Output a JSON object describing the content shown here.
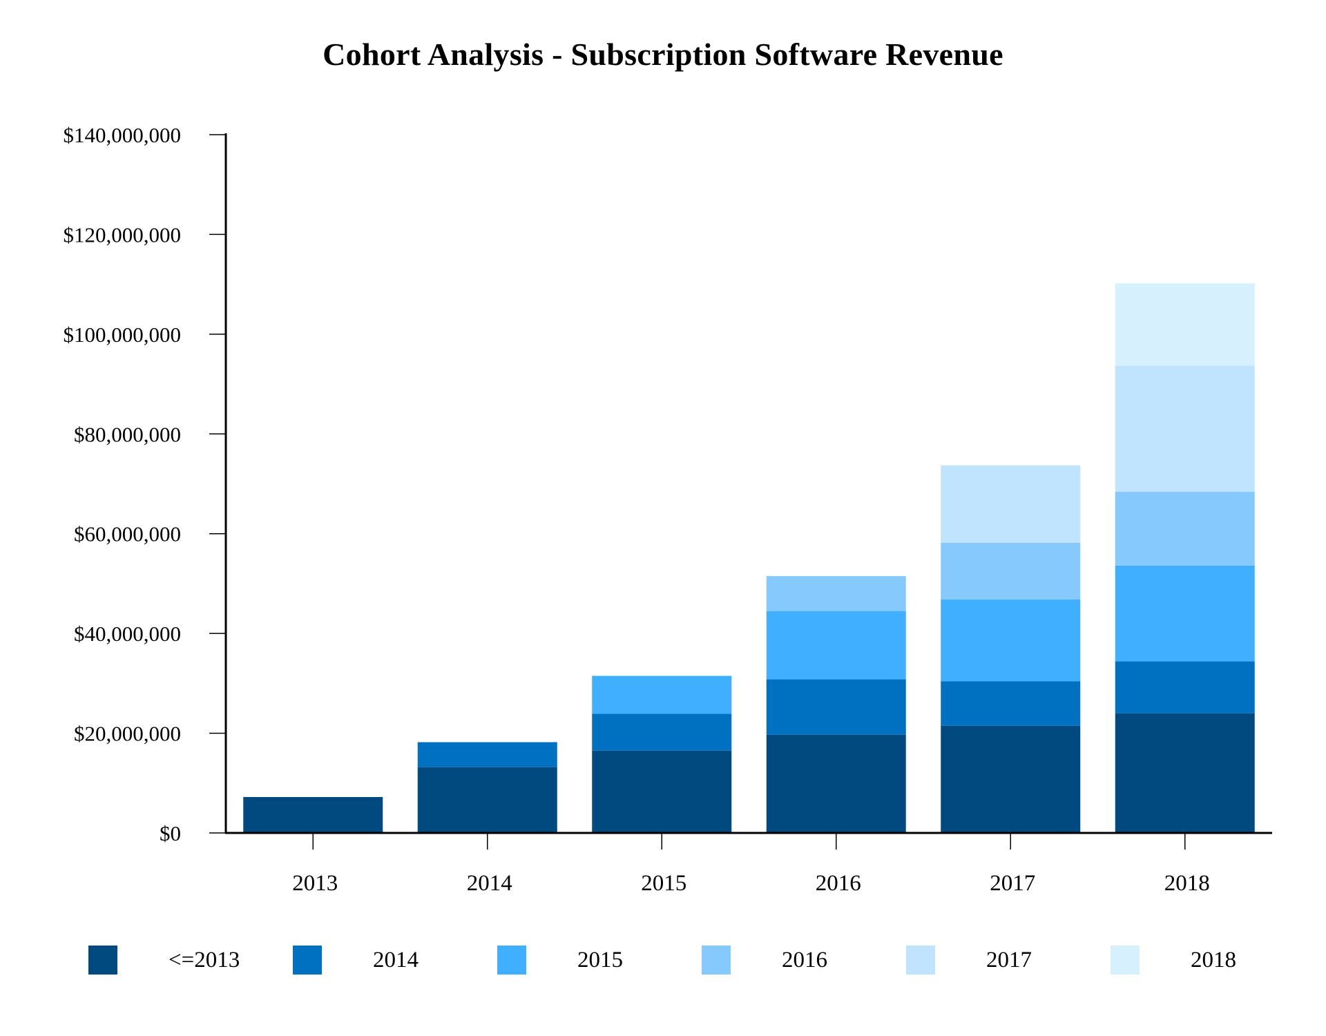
{
  "chart_data": {
    "type": "bar",
    "stacked": true,
    "title": "Cohort Analysis - Subscription Software Revenue",
    "xlabel": "",
    "ylabel": "",
    "categories": [
      "2013",
      "2014",
      "2015",
      "2016",
      "2017",
      "2018"
    ],
    "ylim": [
      0,
      140000000
    ],
    "yticks": [
      0,
      20000000,
      40000000,
      60000000,
      80000000,
      100000000,
      120000000,
      140000000
    ],
    "ytick_labels": [
      "$0",
      "$20,000,000",
      "$40,000,000",
      "$60,000,000",
      "$80,000,000",
      "$100,000,000",
      "$120,000,000",
      "$140,000,000"
    ],
    "grid": false,
    "legend_position": "bottom",
    "series": [
      {
        "name": "<=2013",
        "color": "#004A7F",
        "values": [
          7200000,
          13200000,
          16500000,
          19700000,
          21500000,
          24000000
        ]
      },
      {
        "name": "2014",
        "color": "#0070C0",
        "values": [
          null,
          5000000,
          7400000,
          11100000,
          8900000,
          10400000
        ]
      },
      {
        "name": "2015",
        "color": "#41AFFF",
        "values": [
          null,
          null,
          7600000,
          13700000,
          16400000,
          19200000
        ]
      },
      {
        "name": "2016",
        "color": "#85C9FD",
        "values": [
          null,
          null,
          null,
          7000000,
          11400000,
          14800000
        ]
      },
      {
        "name": "2017",
        "color": "#C0E3FE",
        "values": [
          null,
          null,
          null,
          null,
          15500000,
          25300000
        ]
      },
      {
        "name": "2018",
        "color": "#D6F0FE",
        "values": [
          null,
          null,
          null,
          null,
          null,
          16500000
        ]
      }
    ]
  }
}
